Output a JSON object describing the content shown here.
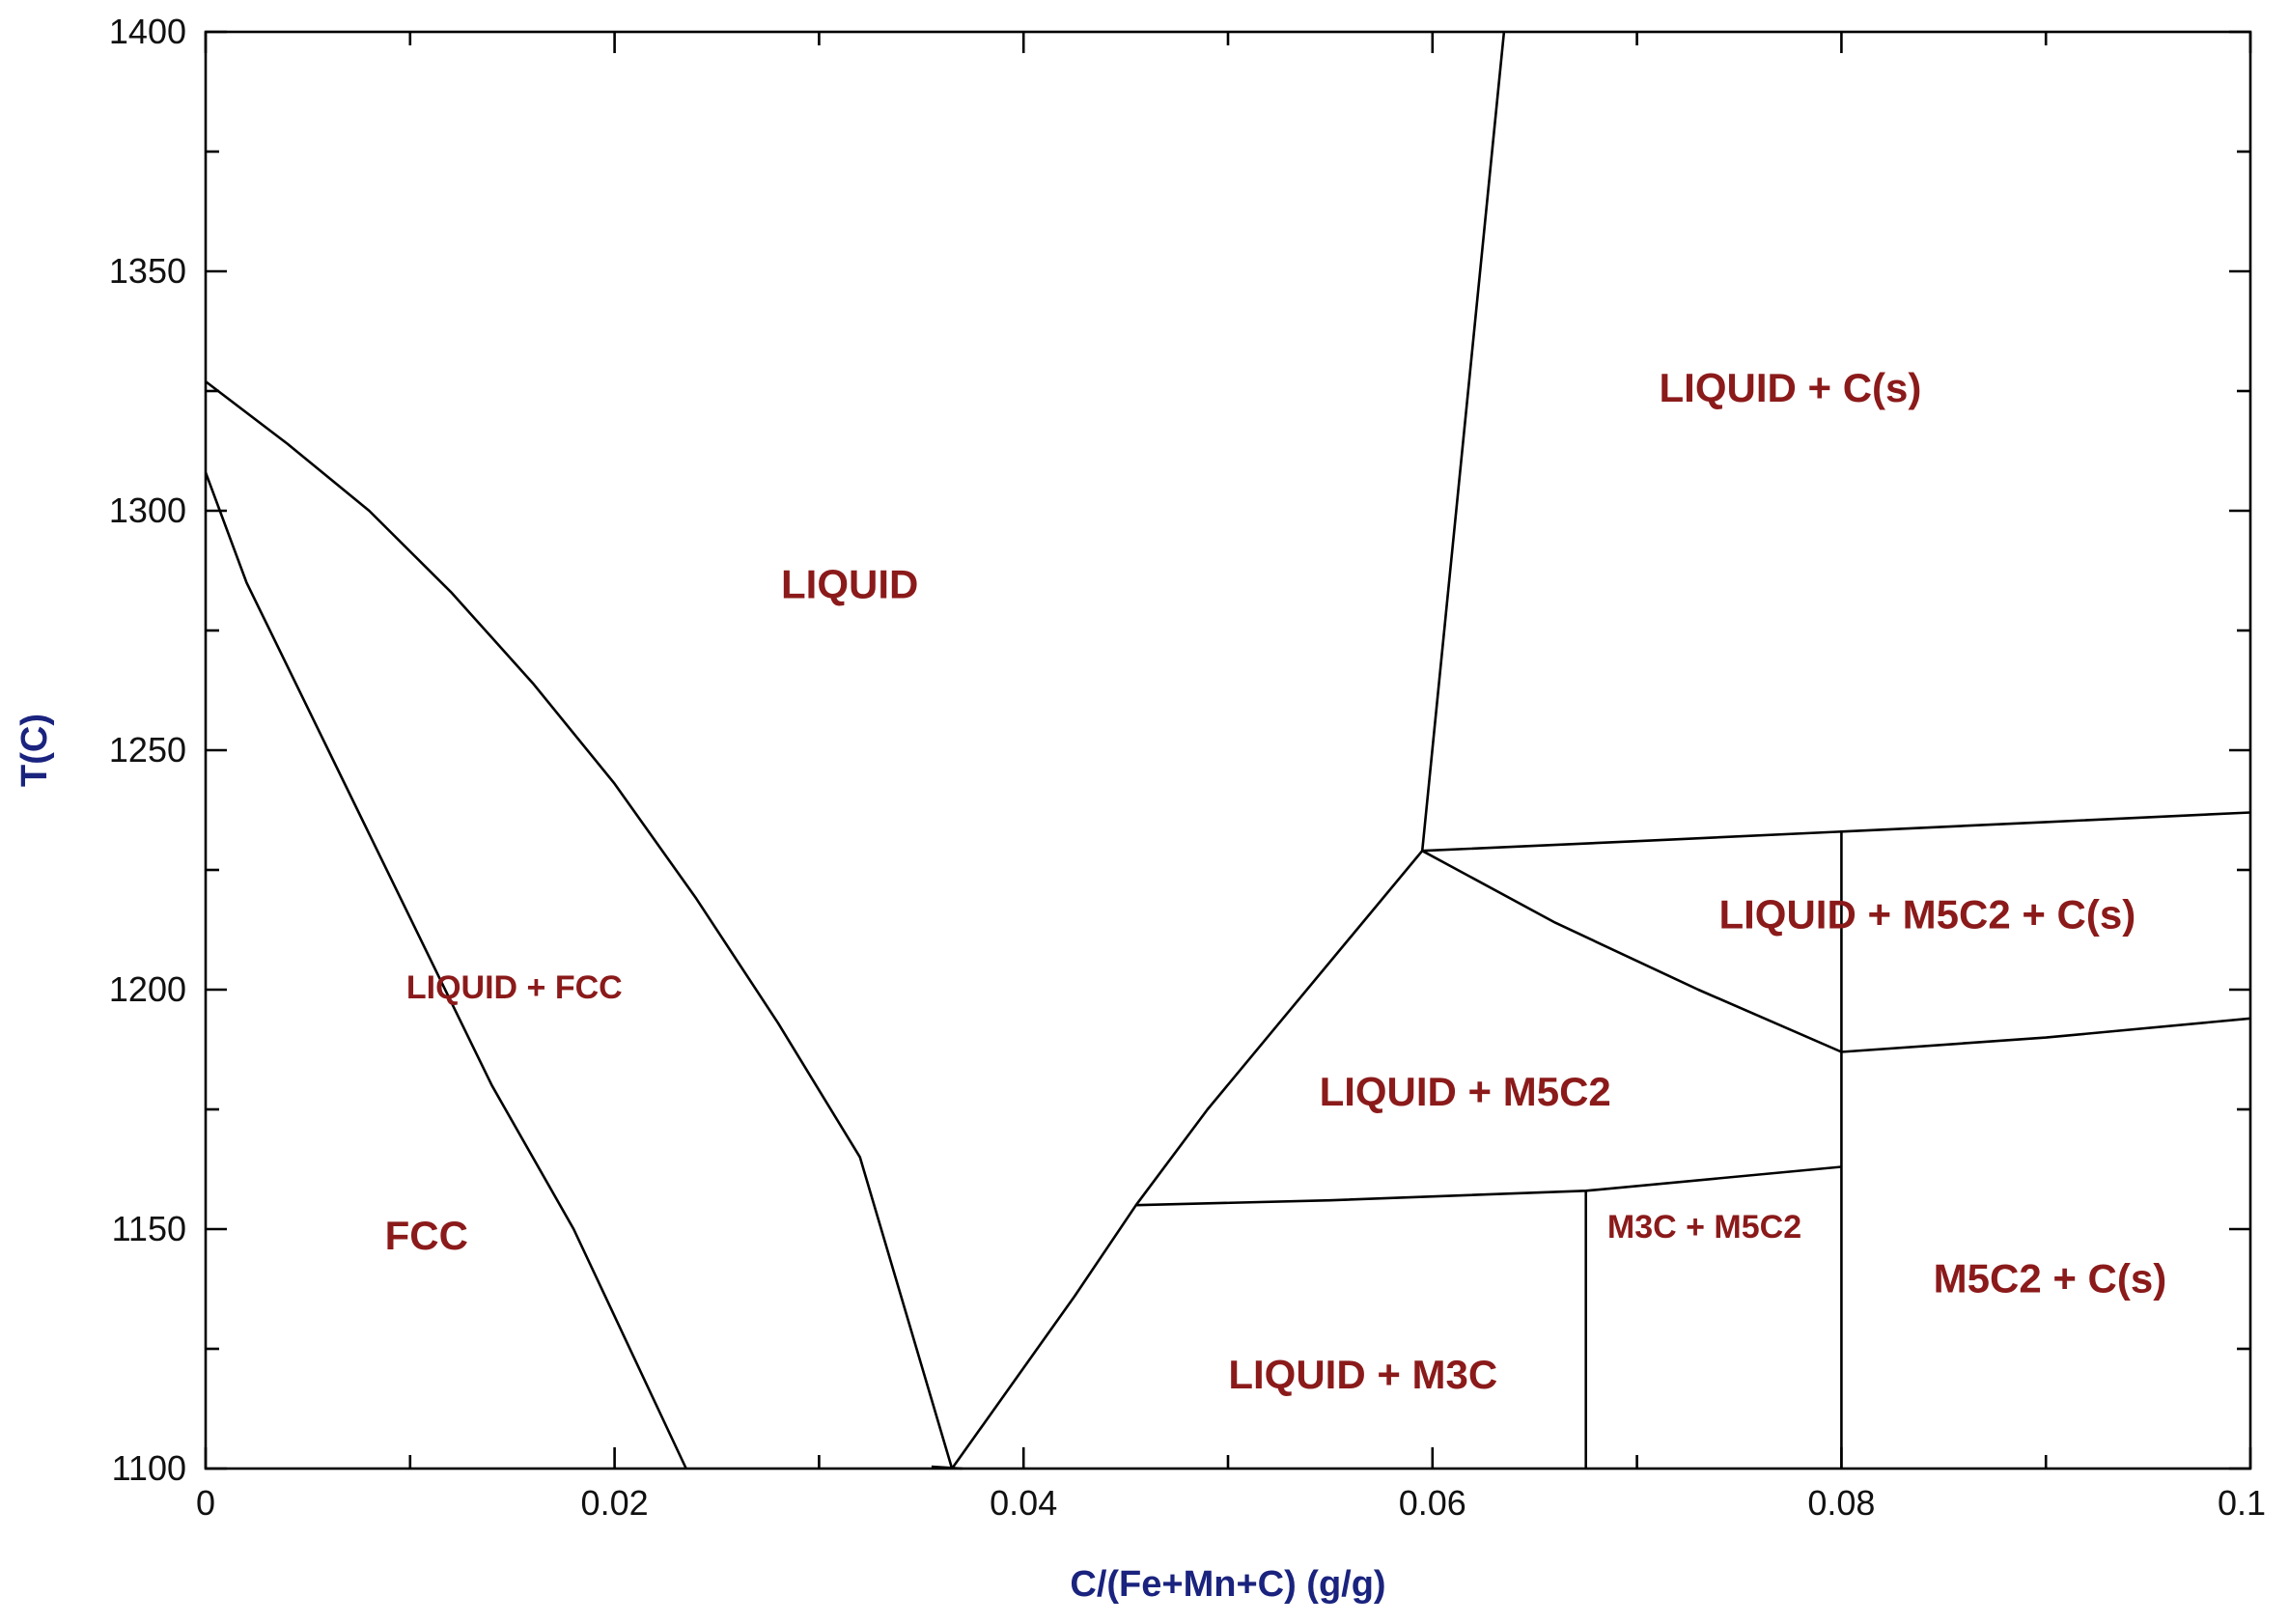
{
  "chart_data": {
    "type": "line",
    "title": "",
    "xlabel": "C/(Fe+Mn+C) (g/g)",
    "ylabel": "T(C)",
    "xlim": [
      0,
      0.1
    ],
    "ylim": [
      1100,
      1400
    ],
    "x_ticks": [
      0,
      0.02,
      0.04,
      0.06,
      0.08,
      0.1
    ],
    "x_tick_labels": [
      "0",
      "0.02",
      "0.04",
      "0.06",
      "0.08",
      "0.1"
    ],
    "x_minor_ticks": [
      0.01,
      0.03,
      0.05,
      0.07,
      0.09
    ],
    "y_ticks": [
      1100,
      1150,
      1200,
      1250,
      1300,
      1350,
      1400
    ],
    "y_tick_labels": [
      "1100",
      "1150",
      "1200",
      "1250",
      "1300",
      "1350",
      "1400"
    ],
    "y_minor_ticks": [
      1125,
      1175,
      1225,
      1275,
      1325,
      1375
    ],
    "grid": false,
    "colors": {
      "line": "#000000",
      "region_label": "#8b1a1a",
      "axis_title": "#1a237e"
    },
    "series": [
      {
        "points": [
          [
            0,
            1327
          ],
          [
            0.004,
            1314
          ],
          [
            0.008,
            1300
          ],
          [
            0.012,
            1283
          ],
          [
            0.016,
            1264
          ],
          [
            0.02,
            1243
          ],
          [
            0.024,
            1219
          ],
          [
            0.028,
            1193
          ],
          [
            0.032,
            1165
          ],
          [
            0.0365,
            1100
          ]
        ]
      },
      {
        "points": [
          [
            0,
            1308
          ],
          [
            0.002,
            1285
          ],
          [
            0.006,
            1250
          ],
          [
            0.01,
            1215
          ],
          [
            0.014,
            1180
          ],
          [
            0.018,
            1150
          ],
          [
            0.0235,
            1100
          ]
        ]
      },
      {
        "points": [
          [
            0.0355,
            1100.4
          ],
          [
            0.037,
            1100
          ]
        ]
      },
      {
        "points": [
          [
            0.0365,
            1100
          ],
          [
            0.0395,
            1118
          ],
          [
            0.0425,
            1136
          ],
          [
            0.0455,
            1155
          ],
          [
            0.049,
            1175
          ],
          [
            0.0525,
            1193
          ],
          [
            0.0595,
            1229
          ]
        ]
      },
      {
        "points": [
          [
            0.0595,
            1229
          ],
          [
            0.0635,
            1400
          ]
        ]
      },
      {
        "points": [
          [
            0.0595,
            1229
          ],
          [
            0.07,
            1231
          ],
          [
            0.08,
            1233
          ],
          [
            0.09,
            1235
          ],
          [
            0.1,
            1237
          ]
        ]
      },
      {
        "points": [
          [
            0.0595,
            1229
          ],
          [
            0.066,
            1214
          ],
          [
            0.073,
            1200
          ],
          [
            0.08,
            1187
          ]
        ]
      },
      {
        "points": [
          [
            0.08,
            1187
          ],
          [
            0.09,
            1190
          ],
          [
            0.1,
            1194
          ]
        ]
      },
      {
        "points": [
          [
            0.0455,
            1155
          ],
          [
            0.055,
            1156
          ],
          [
            0.0675,
            1158
          ],
          [
            0.08,
            1163
          ]
        ]
      },
      {
        "points": [
          [
            0.0675,
            1158
          ],
          [
            0.0675,
            1100
          ]
        ]
      },
      {
        "points": [
          [
            0.08,
            1233
          ],
          [
            0.08,
            1100
          ]
        ]
      }
    ],
    "annotations": [
      {
        "text": "LIQUID",
        "x": 0.0315,
        "y": 1284,
        "size": "large"
      },
      {
        "text": "LIQUID + C(s)",
        "x": 0.0775,
        "y": 1325,
        "size": "large"
      },
      {
        "text": "LIQUID + FCC",
        "x": 0.0151,
        "y": 1200,
        "size": "small"
      },
      {
        "text": "FCC",
        "x": 0.0108,
        "y": 1148,
        "size": "large"
      },
      {
        "text": "LIQUID + M5C2",
        "x": 0.0616,
        "y": 1178,
        "size": "large"
      },
      {
        "text": "LIQUID + M5C2 + C(s)",
        "x": 0.0842,
        "y": 1215,
        "size": "large"
      },
      {
        "text": "M3C + M5C2",
        "x": 0.0733,
        "y": 1150,
        "size": "small"
      },
      {
        "text": "M5C2 + C(s)",
        "x": 0.0902,
        "y": 1139,
        "size": "large"
      },
      {
        "text": "LIQUID + M3C",
        "x": 0.0566,
        "y": 1119,
        "size": "large"
      }
    ]
  }
}
